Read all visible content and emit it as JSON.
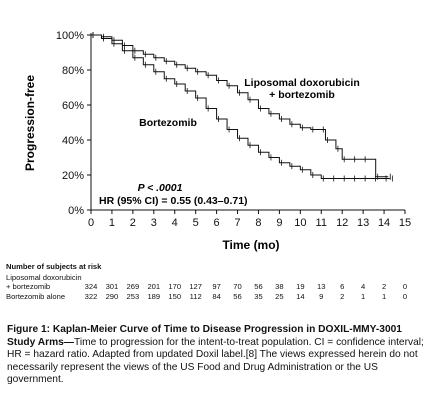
{
  "chart_data": {
    "type": "line",
    "title": "",
    "xlabel": "Time (mo)",
    "ylabel": "Progression-free",
    "xlim": [
      0,
      15
    ],
    "ylim": [
      0,
      100
    ],
    "x_ticks": [
      "0",
      "1",
      "2",
      "3",
      "4",
      "5",
      "6",
      "7",
      "8",
      "9",
      "10",
      "11",
      "12",
      "13",
      "14",
      "15"
    ],
    "y_ticks": [
      "0%",
      "20%",
      "40%",
      "60%",
      "80%",
      "100%"
    ],
    "grid": false,
    "series": [
      {
        "name": "Liposomal doxorubicin + bortezomib",
        "label_line1": "Liposomal doxorubicin",
        "label_line2": "+ bortezomib",
        "points": [
          [
            0,
            100
          ],
          [
            0.5,
            99
          ],
          [
            1,
            97
          ],
          [
            1.5,
            94
          ],
          [
            2,
            91
          ],
          [
            2.5,
            89
          ],
          [
            3,
            87
          ],
          [
            3.5,
            85
          ],
          [
            4,
            83
          ],
          [
            4.5,
            81
          ],
          [
            5,
            79
          ],
          [
            5.5,
            77
          ],
          [
            6,
            74
          ],
          [
            6.5,
            71
          ],
          [
            7,
            67
          ],
          [
            7.5,
            63
          ],
          [
            8,
            58
          ],
          [
            8.5,
            55
          ],
          [
            9,
            52
          ],
          [
            9.5,
            49
          ],
          [
            10,
            47
          ],
          [
            10.5,
            46
          ],
          [
            11,
            46
          ],
          [
            11.2,
            40
          ],
          [
            11.7,
            35
          ],
          [
            12,
            29
          ],
          [
            12.5,
            29
          ],
          [
            13,
            29
          ],
          [
            13.6,
            19
          ],
          [
            14.2,
            19
          ]
        ]
      },
      {
        "name": "Bortezomib",
        "label_line1": "Bortezomib",
        "points": [
          [
            0,
            100
          ],
          [
            0.5,
            98
          ],
          [
            1,
            95
          ],
          [
            1.5,
            91
          ],
          [
            2,
            87
          ],
          [
            2.5,
            83
          ],
          [
            3,
            79
          ],
          [
            3.5,
            75
          ],
          [
            4,
            72
          ],
          [
            4.5,
            68
          ],
          [
            5,
            64
          ],
          [
            5.5,
            58
          ],
          [
            6,
            52
          ],
          [
            6.5,
            46
          ],
          [
            7,
            41
          ],
          [
            7.5,
            37
          ],
          [
            8,
            33
          ],
          [
            8.5,
            30
          ],
          [
            9,
            27
          ],
          [
            9.5,
            25
          ],
          [
            10,
            23
          ],
          [
            10.5,
            20
          ],
          [
            11,
            18
          ],
          [
            11.5,
            18
          ],
          [
            12,
            18
          ],
          [
            12.5,
            18
          ],
          [
            13,
            18
          ],
          [
            13.5,
            18
          ],
          [
            14,
            18
          ],
          [
            14.3,
            18
          ]
        ]
      }
    ],
    "annotations": {
      "p_value": "P < .0001",
      "hr": "HR (95% CI) = 0.55 (0.43–0.71)"
    },
    "risk_table": {
      "title": "Number of subjects at risk",
      "rows": [
        {
          "label_line1": "Liposomal doxorubicin",
          "label_line2": "+ bortezomib",
          "values": [
            "324",
            "301",
            "269",
            "201",
            "170",
            "127",
            "97",
            "70",
            "56",
            "38",
            "19",
            "13",
            "6",
            "4",
            "2",
            "0"
          ]
        },
        {
          "label_line1": "Bortezomib alone",
          "values": [
            "322",
            "290",
            "253",
            "189",
            "150",
            "112",
            "84",
            "56",
            "35",
            "25",
            "14",
            "9",
            "2",
            "1",
            "1",
            "0"
          ]
        }
      ]
    }
  },
  "caption": {
    "title": "Figure 1: Kaplan-Meier Curve of Time to Disease Progression in DOXIL-MMY-3001 Study Arms—",
    "body": "Time to progression for the intent-to-treat population. CI = confidence interval; HR = hazard ratio. Adapted from updated Doxil label.[8] The views expressed herein do not necessarily represent the views of the US Food and Drug Administration or the US government."
  },
  "colors": {
    "panel_background": "#ffffff",
    "line": "#111111"
  }
}
